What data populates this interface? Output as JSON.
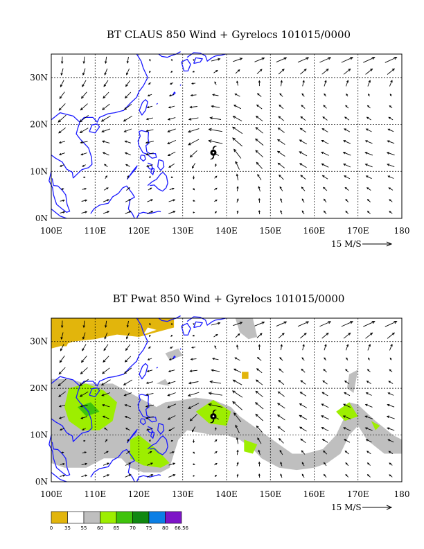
{
  "colors": {
    "coast": "#1a1aff",
    "arrow": "#000000",
    "grid": "#000000"
  },
  "chart_data": [
    {
      "type": "vector-map",
      "title": "BT CLAUS 850 Wind + Gyrelocs 101015/0000",
      "xlim": [
        100,
        180
      ],
      "ylim": [
        0,
        35
      ],
      "x_ticks": [
        "100E",
        "110E",
        "120E",
        "130E",
        "140E",
        "150E",
        "160E",
        "170E",
        "180"
      ],
      "y_ticks": [
        "0N",
        "10N",
        "20N",
        "30N"
      ],
      "grid": "dotted",
      "reference_vector": "15 M/S",
      "gyre_symbol_lonlat": [
        137,
        14
      ]
    },
    {
      "type": "vector-map",
      "title": "BT Pwat 850 Wind + Gyrelocs 101015/0000",
      "xlim": [
        100,
        180
      ],
      "ylim": [
        0,
        35
      ],
      "x_ticks": [
        "100E",
        "110E",
        "120E",
        "130E",
        "140E",
        "150E",
        "160E",
        "170E",
        "180"
      ],
      "y_ticks": [
        "0N",
        "10N",
        "20N",
        "30N"
      ],
      "grid": "dotted",
      "reference_vector": "15 M/S",
      "gyre_symbol_lonlat": [
        137,
        14
      ],
      "legend": {
        "colors": [
          "#e2b50c",
          "#ffffff",
          "#bfbfbf",
          "#9dee00",
          "#3fc30c",
          "#118811",
          "#0c7fe5",
          "#7d14c7"
        ],
        "labels": [
          "0",
          "35",
          "55",
          "60",
          "65",
          "70",
          "75",
          "80",
          "66.56"
        ]
      }
    }
  ]
}
